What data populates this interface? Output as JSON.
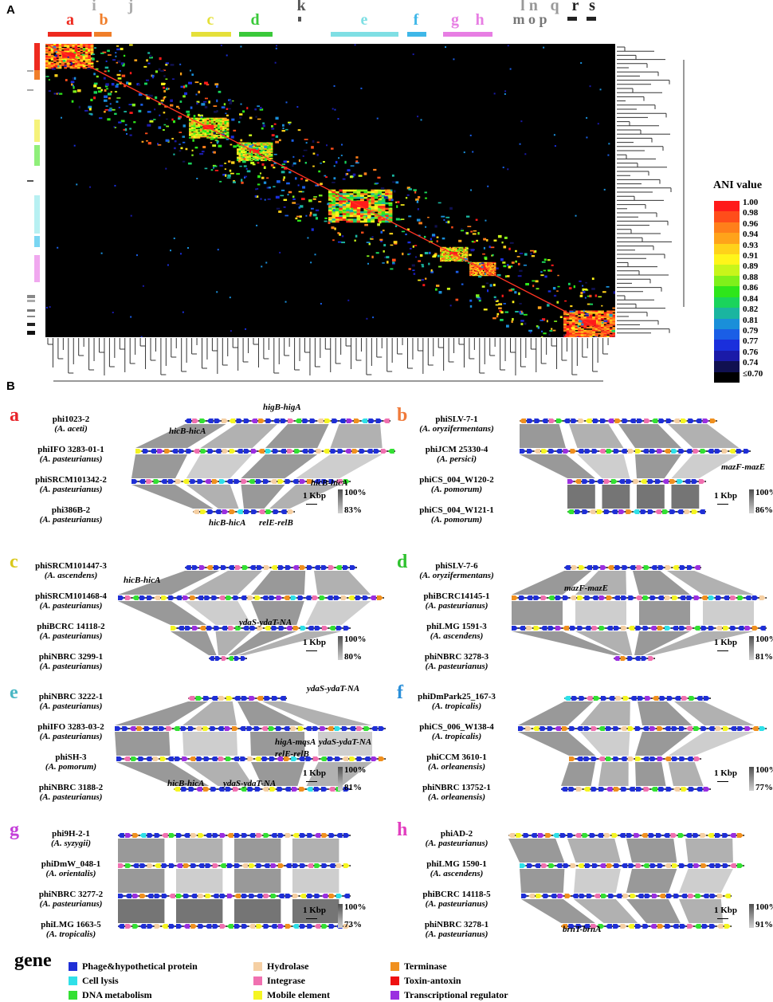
{
  "panel_labels": {
    "a": "A",
    "b": "B"
  },
  "clades": [
    {
      "label": "a",
      "color": "#ee2a1f",
      "x": 88,
      "bx": 60,
      "bw": 55
    },
    {
      "label": "i",
      "color": "#aaaaaa",
      "x": 118,
      "bx": 0,
      "bw": 0
    },
    {
      "label": "b",
      "color": "#f07e2a",
      "x": 130,
      "bx": 118,
      "bw": 22
    },
    {
      "label": "j",
      "color": "#aaaaaa",
      "x": 164,
      "bx": 0,
      "bw": 0
    },
    {
      "label": "c",
      "color": "#e5e03a",
      "x": 264,
      "bx": 240,
      "bw": 50
    },
    {
      "label": "d",
      "color": "#3ac93a",
      "x": 320,
      "bx": 300,
      "bw": 42
    },
    {
      "label": "k",
      "color": "#555555",
      "x": 378,
      "bx": 0,
      "bw": 0
    },
    {
      "label": "e",
      "color": "#7fdfe4",
      "x": 457,
      "bx": 415,
      "bw": 85
    },
    {
      "label": "f",
      "color": "#3fb7e8",
      "x": 522,
      "bx": 511,
      "bw": 24
    },
    {
      "label": "g",
      "color": "#e77ee3",
      "x": 571,
      "bx": 556,
      "bw": 34
    },
    {
      "label": "h",
      "color": "#e77ee3",
      "x": 602,
      "bx": 588,
      "bw": 30
    }
  ],
  "right_clades": {
    "group1": "l n",
    "group2": "m o p",
    "q": "q",
    "r": "r",
    "s": "s"
  },
  "ani_legend": {
    "title": "ANI value",
    "ticks": [
      "1.00",
      "0.98",
      "0.96",
      "0.94",
      "0.93",
      "0.91",
      "0.89",
      "0.88",
      "0.86",
      "0.84",
      "0.82",
      "0.81",
      "0.79",
      "0.77",
      "0.76",
      "0.74",
      "≤0.70"
    ],
    "colors": [
      "#ff1a1a",
      "#ff4d1a",
      "#ff7f1a",
      "#ffa31a",
      "#ffd21a",
      "#fff51a",
      "#c8f51a",
      "#7ff01a",
      "#2ee61a",
      "#1ad45c",
      "#1ab5a0",
      "#1a8fd9",
      "#1a5ee6",
      "#1a2fdc",
      "#1a1aa8",
      "#101050",
      "#000000"
    ]
  },
  "subpanels": [
    {
      "letter": "a",
      "color": "#e8242a",
      "phages": [
        {
          "name": "phi1023-2",
          "species": "(A. aceti)"
        },
        {
          "name": "phiIFO 3283-01-1",
          "species": "(A. pasteurianus)"
        },
        {
          "name": "phiSRCM101342-2",
          "species": "(A. pasteurianus)"
        },
        {
          "name": "phi386B-2",
          "species": "(A. pasteurianus)"
        }
      ],
      "ta": [
        "higB-higA",
        "hicB-hicA",
        "hicB-hicA",
        "hicB-hicA",
        "relE-relB"
      ],
      "scale": "1 Kbp",
      "pct_hi": "100%",
      "pct_lo": "83%"
    },
    {
      "letter": "b",
      "color": "#f07a3a",
      "phages": [
        {
          "name": "phiSLV-7-1",
          "species": "(A. oryzifermentans)"
        },
        {
          "name": "phiJCM 25330-4",
          "species": "(A. persici)"
        },
        {
          "name": "phiCS_004_W120-2",
          "species": "(A. pomorum)"
        },
        {
          "name": "phiCS_004_W121-1",
          "species": "(A. pomorum)"
        }
      ],
      "ta": [
        "mazF-mazE"
      ],
      "scale": "1 Kbp",
      "pct_hi": "100%",
      "pct_lo": "86%"
    },
    {
      "letter": "c",
      "color": "#d9c81a",
      "phages": [
        {
          "name": "phiSRCM101447-3",
          "species": "(A. ascendens)"
        },
        {
          "name": "phiSRCM101468-4",
          "species": "(A. pasteurianus)"
        },
        {
          "name": "phiBCRC 14118-2",
          "species": "(A. pasteurianus)"
        },
        {
          "name": "phiNBRC 3299-1",
          "species": "(A. pasteurianus)"
        }
      ],
      "ta": [
        "hicB-hicA",
        "ydaS-ydaT-NA"
      ],
      "scale": "1 Kbp",
      "pct_hi": "100%",
      "pct_lo": "80%"
    },
    {
      "letter": "d",
      "color": "#2fc22f",
      "phages": [
        {
          "name": "phiSLV-7-6",
          "species": "(A. oryzifermentans)"
        },
        {
          "name": "phiBCRC14145-1",
          "species": "(A. pasteurianus)"
        },
        {
          "name": "phiLMG 1591-3",
          "species": "(A. ascendens)"
        },
        {
          "name": "phiNBRC 3278-3",
          "species": "(A. pasteurianus)"
        }
      ],
      "ta": [
        "mazF-mazE"
      ],
      "scale": "1 Kbp",
      "pct_hi": "100%",
      "pct_lo": "81%"
    },
    {
      "letter": "e",
      "color": "#49b7c4",
      "phages": [
        {
          "name": "phiNBRC 3222-1",
          "species": "(A. pasteurianus)"
        },
        {
          "name": "phiIFO 3283-03-2",
          "species": "(A. pasteurianus)"
        },
        {
          "name": "phiSH-3",
          "species": "(A. pomorum)"
        },
        {
          "name": "phiNBRC 3188-2",
          "species": "(A. pasteurianus)"
        }
      ],
      "ta": [
        "ydaS-ydaT-NA",
        "higA-mqsA",
        "ydaS-ydaT-NA",
        "relE-relB",
        "hicB-hicA",
        "ydaS-ydaT-NA"
      ],
      "scale": "1 Kbp",
      "pct_hi": "100%",
      "pct_lo": "81%"
    },
    {
      "letter": "f",
      "color": "#2a8fd9",
      "phages": [
        {
          "name": "phiDmPark25_167-3",
          "species": "(A. tropicalis)"
        },
        {
          "name": "phiCS_006_W138-4",
          "species": "(A. tropicalis)"
        },
        {
          "name": "phiCCM 3610-1",
          "species": "(A. orleanensis)"
        },
        {
          "name": "phiNBRC 13752-1",
          "species": "(A. orleanensis)"
        }
      ],
      "ta": [],
      "scale": "1 Kbp",
      "pct_hi": "100%",
      "pct_lo": "77%"
    },
    {
      "letter": "g",
      "color": "#c43fd9",
      "phages": [
        {
          "name": "phi9H-2-1",
          "species": "(A. syzygii)"
        },
        {
          "name": "phiDmW_048-1",
          "species": "(A. orientalis)"
        },
        {
          "name": "phiNBRC 3277-2",
          "species": "(A. pasteurianus)"
        },
        {
          "name": "phiLMG 1663-5",
          "species": "(A. tropicalis)"
        }
      ],
      "ta": [],
      "scale": "1 Kbp",
      "pct_hi": "100%",
      "pct_lo": "73%"
    },
    {
      "letter": "h",
      "color": "#e23fbf",
      "phages": [
        {
          "name": "phiAD-2",
          "species": "(A. pasteurianus)"
        },
        {
          "name": "phiLMG 1590-1",
          "species": "(A. ascendens)"
        },
        {
          "name": "phiBCRC 14118-5",
          "species": "(A. pasteurianus)"
        },
        {
          "name": "phiNBRC 3278-1",
          "species": "(A. pasteurianus)"
        }
      ],
      "ta": [
        "brnT-brnA"
      ],
      "scale": "1 Kbp",
      "pct_hi": "100%",
      "pct_lo": "91%"
    }
  ],
  "gene_legend": {
    "title": "gene",
    "items": [
      {
        "label": "Phage&hypothetical protein",
        "color": "#1f2fd6"
      },
      {
        "label": "Cell lysis",
        "color": "#2fe0e8"
      },
      {
        "label": "DNA metabolism",
        "color": "#33e033"
      },
      {
        "label": "Hydrolase",
        "color": "#f5cfa3"
      },
      {
        "label": "Integrase",
        "color": "#f070b0"
      },
      {
        "label": "Mobile element",
        "color": "#f5f522"
      },
      {
        "label": "Terminase",
        "color": "#f0901f"
      },
      {
        "label": "Toxin-antoxin",
        "color": "#ee1111"
      },
      {
        "label": "Transcriptional regulator",
        "color": "#9a2fe0"
      }
    ]
  }
}
